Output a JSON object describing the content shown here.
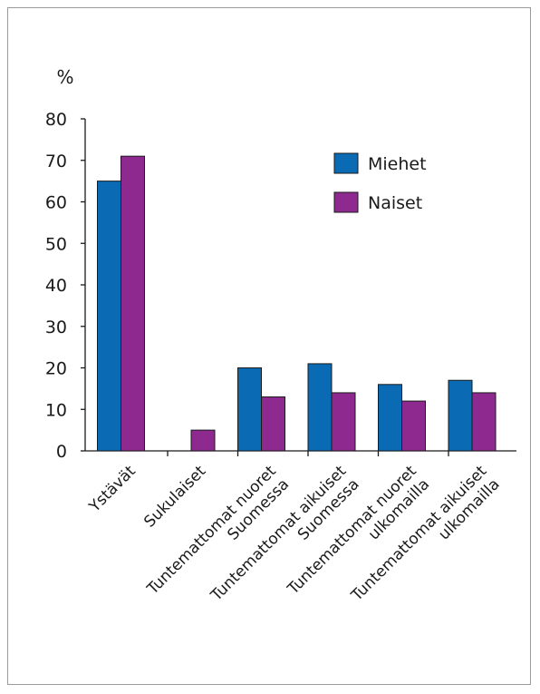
{
  "chart_data": {
    "type": "bar",
    "ylabel": "%",
    "ylim": [
      0,
      80
    ],
    "yticks": [
      0,
      10,
      20,
      30,
      40,
      50,
      60,
      70,
      80
    ],
    "categories": [
      [
        "Ystävät"
      ],
      [
        "Sukulaiset"
      ],
      [
        "Tuntemattomat nuoret",
        "Suomessa"
      ],
      [
        "Tuntemattomat aikuiset",
        "Suomessa"
      ],
      [
        "Tuntemattomat nuoret",
        "ulkomailla"
      ],
      [
        "Tuntemattomat aikuiset",
        "ulkomailla"
      ]
    ],
    "series": [
      {
        "name": "Miehet",
        "color": "#0b6ab4",
        "values": [
          65,
          0,
          20,
          21,
          16,
          17
        ]
      },
      {
        "name": "Naiset",
        "color": "#8e2a8f",
        "values": [
          71,
          5,
          13,
          14,
          12,
          14
        ]
      }
    ],
    "legend_position": "top-right",
    "grid": false
  }
}
